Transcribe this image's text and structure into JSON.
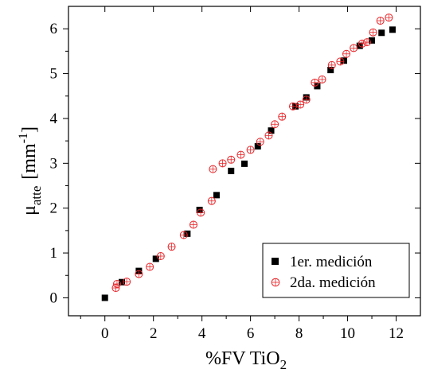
{
  "chart_data": {
    "type": "scatter",
    "xlabel": "%FV TiO",
    "xlabel_subscript": "2",
    "ylabel_main": "μ",
    "ylabel_subscript": "atte",
    "ylabel_unit": "[mm",
    "ylabel_superscript": "-1",
    "ylabel_close": "]",
    "xlim": [
      -1.5,
      13.0
    ],
    "ylim": [
      -0.4,
      6.5
    ],
    "xticks": [
      0,
      2,
      4,
      6,
      8,
      10,
      12
    ],
    "yticks": [
      0,
      1,
      2,
      3,
      4,
      5,
      6
    ],
    "grid": false,
    "legend_position": "bottom-right",
    "series": [
      {
        "name": "1er. medición",
        "marker": "filled-square",
        "color": "#000000",
        "points": [
          [
            0.0,
            0.0
          ],
          [
            0.7,
            0.35
          ],
          [
            1.4,
            0.6
          ],
          [
            2.1,
            0.87
          ],
          [
            3.4,
            1.43
          ],
          [
            3.9,
            1.96
          ],
          [
            4.6,
            2.29
          ],
          [
            5.2,
            2.83
          ],
          [
            5.75,
            2.99
          ],
          [
            6.3,
            3.38
          ],
          [
            6.85,
            3.73
          ],
          [
            7.85,
            4.27
          ],
          [
            8.3,
            4.47
          ],
          [
            8.75,
            4.72
          ],
          [
            9.3,
            5.08
          ],
          [
            9.85,
            5.29
          ],
          [
            10.5,
            5.62
          ],
          [
            11.0,
            5.74
          ],
          [
            11.4,
            5.91
          ],
          [
            11.85,
            5.98
          ]
        ]
      },
      {
        "name": "2da. medición",
        "marker": "open-circle-cross",
        "color": "#e8262a",
        "points": [
          [
            0.45,
            0.22
          ],
          [
            0.5,
            0.31
          ],
          [
            0.9,
            0.36
          ],
          [
            1.4,
            0.53
          ],
          [
            1.85,
            0.69
          ],
          [
            2.3,
            0.93
          ],
          [
            2.75,
            1.14
          ],
          [
            3.25,
            1.4
          ],
          [
            3.65,
            1.63
          ],
          [
            3.95,
            1.9
          ],
          [
            4.4,
            2.16
          ],
          [
            4.45,
            2.87
          ],
          [
            4.85,
            3.0
          ],
          [
            5.2,
            3.08
          ],
          [
            5.6,
            3.19
          ],
          [
            6.0,
            3.3
          ],
          [
            6.4,
            3.48
          ],
          [
            6.75,
            3.62
          ],
          [
            7.0,
            3.87
          ],
          [
            7.3,
            4.04
          ],
          [
            7.75,
            4.27
          ],
          [
            8.05,
            4.31
          ],
          [
            8.3,
            4.42
          ],
          [
            8.65,
            4.8
          ],
          [
            8.95,
            4.87
          ],
          [
            9.35,
            5.19
          ],
          [
            9.7,
            5.27
          ],
          [
            9.95,
            5.44
          ],
          [
            10.25,
            5.57
          ],
          [
            10.6,
            5.67
          ],
          [
            10.8,
            5.7
          ],
          [
            11.05,
            5.92
          ],
          [
            11.35,
            6.18
          ],
          [
            11.7,
            6.25
          ]
        ]
      }
    ]
  }
}
